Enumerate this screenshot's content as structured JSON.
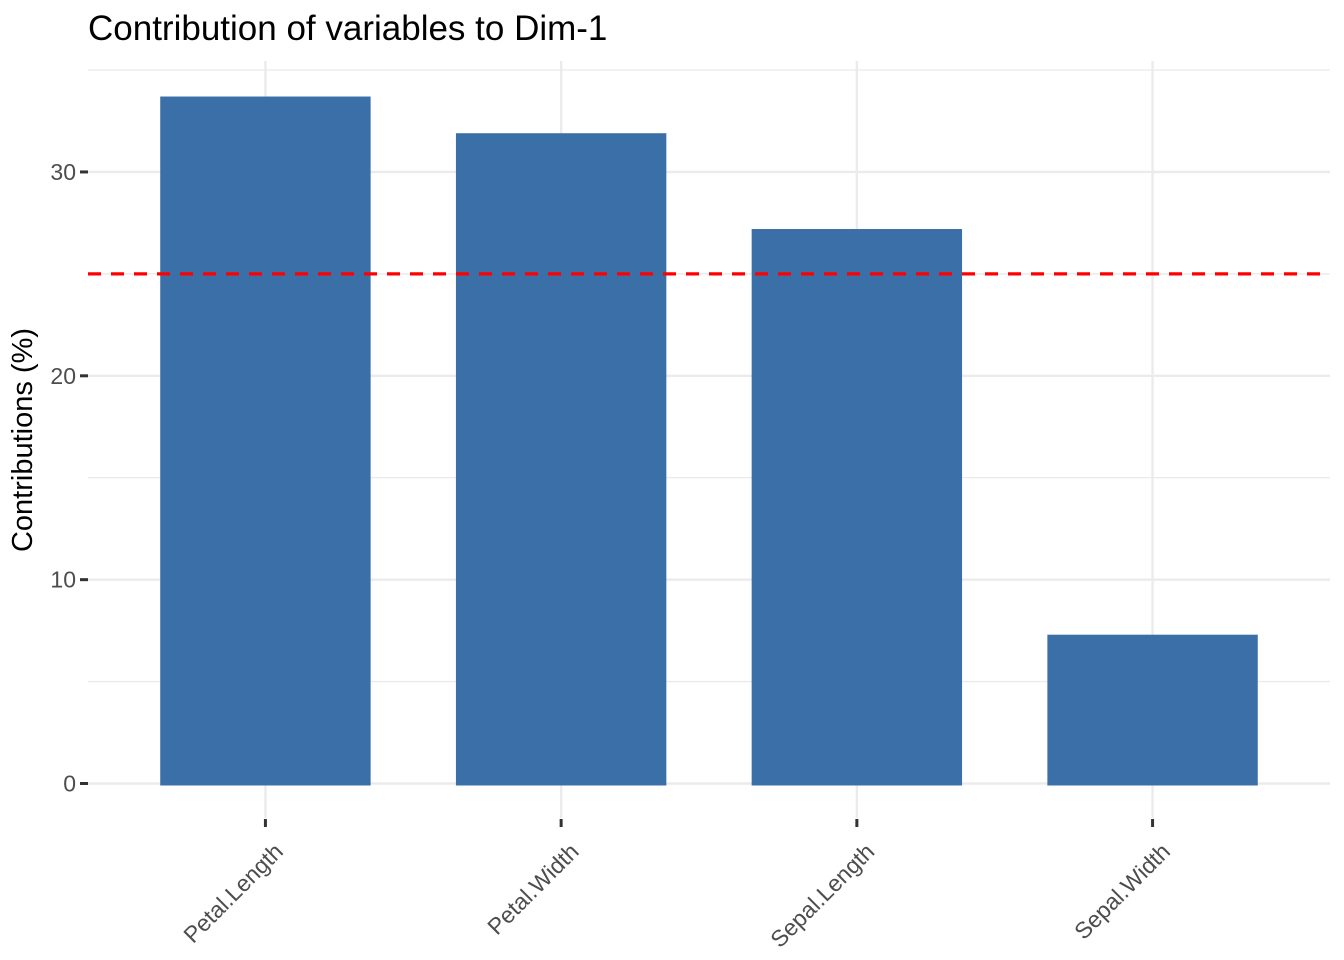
{
  "chart_data": {
    "type": "bar",
    "title": "Contribution of variables to Dim-1",
    "ylabel": "Contributions (%)",
    "xlabel": "",
    "categories": [
      "Petal.Length",
      "Petal.Width",
      "Sepal.Length",
      "Sepal.Width"
    ],
    "values": [
      33.7,
      31.9,
      27.2,
      7.3
    ],
    "y_major_ticks": [
      0,
      10,
      20,
      30
    ],
    "y_minor_ticks": [
      5,
      15,
      25,
      35
    ],
    "ylim": [
      -1.7,
      35.4
    ],
    "x_label_rotation": 45,
    "grid": true,
    "legend": "none",
    "reference_line": {
      "value": 25,
      "color": "#FF0000",
      "style": "dashed"
    },
    "bar_color": "#3B6FA8",
    "grid_color": "#EBEBEB",
    "tick_mark_color": "#333333",
    "tick_text_color": "#4D4D4D",
    "title_color": "#000000"
  }
}
